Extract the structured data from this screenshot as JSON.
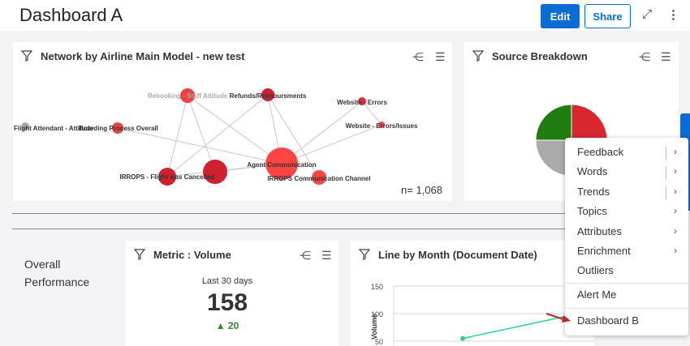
{
  "header": {
    "title": "Dashboard A",
    "edit_label": "Edit",
    "share_label": "Share",
    "expand_icon": "expand-icon",
    "more_icon": "more-vertical-icon"
  },
  "network_widget": {
    "title": "Network by Airline Main Model - new test",
    "sample": "n= 1,068",
    "nodes": [
      {
        "label": "Rebooking - Staff Attitude",
        "color": "#f04040"
      },
      {
        "label": "Refunds/Reimbursments",
        "color": "#d02030"
      },
      {
        "label": "Website - Errors",
        "color": "#e02c36"
      },
      {
        "label": "Website - Errors/Issues",
        "color": "#f04848"
      },
      {
        "label": "Flight Attendant - Attitude",
        "color": "#aaaaaa"
      },
      {
        "label": "Boarding Process Overall",
        "color": "#f04040"
      },
      {
        "label": "Agent Communication",
        "color": "#ff4444"
      },
      {
        "label": "IRROPS - Flight was Cancelled",
        "color": "#d0222e"
      },
      {
        "label": "",
        "color": "#d0222e"
      },
      {
        "label": "IRROPS Communication Channel",
        "color": "#ff4444"
      }
    ]
  },
  "source_widget": {
    "title": "Source Breakdown",
    "slices": [
      {
        "color": "#d9262f",
        "value": 50
      },
      {
        "color": "#aaaaaa",
        "value": 25
      },
      {
        "color": "#1f7d12",
        "value": 25
      }
    ]
  },
  "overall": {
    "line1": "Overall",
    "line2": "Performance"
  },
  "metric_widget": {
    "title": "Metric : Volume",
    "period": "Last 30 days",
    "value": "158",
    "delta": "▲ 20",
    "delta_color": "#2a8a2a"
  },
  "line_widget": {
    "title": "Line by Month (Document Date)",
    "ylabel": "Volume",
    "yticks": [
      "150",
      "100",
      "50"
    ],
    "line_color": "#2bd1a0",
    "points": [
      55,
      95
    ]
  },
  "menu": {
    "items": [
      "Feedback",
      "Words",
      "Trends",
      "Topics",
      "Attributes",
      "Enrichment",
      "Outliers"
    ],
    "alert": "Alert Me",
    "dashboard": "Dashboard B"
  }
}
